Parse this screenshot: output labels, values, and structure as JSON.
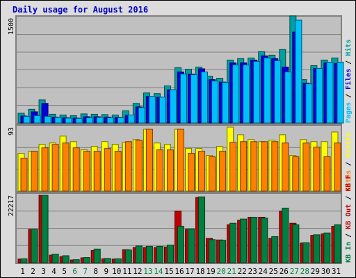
{
  "page": {
    "title": "Daily usage for August 2016",
    "colors": {
      "title": "#0000c0",
      "hits": "#00a0a0",
      "files": "#0000e0",
      "pages": "#00c0ff",
      "visits": "#ffff00",
      "sites": "#ff8000",
      "kb_in": "#008040",
      "kb_out": "#c00000",
      "weekend_label": "#008040",
      "panel": "#c0c0c0",
      "frame": "#dcdcdc"
    }
  },
  "chart_data": [
    {
      "type": "bar",
      "panel": "top",
      "y_max_label": "1500",
      "ylim": [
        0,
        1500
      ],
      "legend": [
        {
          "key": "hits",
          "label": "Hits"
        },
        {
          "key": "files",
          "label": "Files"
        },
        {
          "key": "pages",
          "label": "Pages"
        }
      ],
      "legend_separator": " / ",
      "categories": [
        "1",
        "2",
        "3",
        "4",
        "5",
        "6",
        "7",
        "8",
        "9",
        "10",
        "11",
        "12",
        "13",
        "14",
        "15",
        "16",
        "17",
        "18",
        "19",
        "20",
        "21",
        "22",
        "23",
        "24",
        "25",
        "26",
        "27",
        "28",
        "29",
        "30",
        "31"
      ],
      "weekend_days": [
        "6",
        "7",
        "13",
        "14",
        "20",
        "21",
        "27",
        "28"
      ],
      "series": [
        {
          "name": "Hits",
          "color_key": "hits",
          "values": [
            140,
            195,
            330,
            125,
            115,
            105,
            130,
            125,
            120,
            115,
            175,
            280,
            430,
            420,
            530,
            790,
            770,
            800,
            670,
            640,
            900,
            920,
            930,
            1020,
            970,
            1050,
            1530,
            620,
            820,
            900,
            930
          ]
        },
        {
          "name": "Files",
          "color_key": "files",
          "values": [
            100,
            160,
            280,
            85,
            75,
            70,
            90,
            90,
            85,
            80,
            110,
            230,
            380,
            370,
            475,
            730,
            700,
            775,
            620,
            585,
            860,
            860,
            900,
            960,
            920,
            800,
            1300,
            570,
            780,
            860,
            850
          ]
        },
        {
          "name": "Pages",
          "color_key": "pages",
          "values": [
            95,
            105,
            95,
            80,
            70,
            65,
            75,
            80,
            75,
            75,
            115,
            220,
            380,
            370,
            475,
            700,
            690,
            730,
            600,
            580,
            830,
            830,
            880,
            930,
            890,
            730,
            1470,
            560,
            780,
            870,
            870
          ]
        }
      ]
    },
    {
      "type": "bar",
      "panel": "middle",
      "y_max_label": "93",
      "ylim": [
        0,
        93
      ],
      "legend": [
        {
          "key": "visits",
          "label": "Visits"
        },
        {
          "key": "sites",
          "label": "Sites"
        }
      ],
      "legend_separator": " / ",
      "categories": [
        "1",
        "2",
        "3",
        "4",
        "5",
        "6",
        "7",
        "8",
        "9",
        "10",
        "11",
        "12",
        "13",
        "14",
        "15",
        "16",
        "17",
        "18",
        "19",
        "20",
        "21",
        "22",
        "23",
        "24",
        "25",
        "26",
        "27",
        "28",
        "29",
        "30",
        "31"
      ],
      "series": [
        {
          "name": "Visits",
          "color_key": "visits",
          "values": [
            55,
            58,
            68,
            70,
            80,
            72,
            60,
            65,
            72,
            68,
            71,
            75,
            90,
            70,
            68,
            90,
            62,
            62,
            52,
            65,
            93,
            82,
            75,
            72,
            74,
            82,
            52,
            75,
            72,
            72,
            86
          ]
        },
        {
          "name": "Sites",
          "color_key": "sites",
          "values": [
            48,
            58,
            63,
            68,
            70,
            63,
            58,
            58,
            62,
            58,
            72,
            74,
            90,
            60,
            60,
            90,
            55,
            58,
            50,
            58,
            71,
            72,
            72,
            72,
            72,
            70,
            50,
            70,
            64,
            50,
            70
          ]
        }
      ]
    },
    {
      "type": "bar",
      "panel": "bottom",
      "y_max_label": "22217",
      "ylim": [
        0,
        22217
      ],
      "legend": [
        {
          "key": "kb_out",
          "label": "KB F"
        },
        {
          "key": "kb_out",
          "label": "KB Out"
        },
        {
          "key": "kb_in",
          "label": "KB In"
        }
      ],
      "legend_separator": " / ",
      "categories": [
        "1",
        "2",
        "3",
        "4",
        "5",
        "6",
        "7",
        "8",
        "9",
        "10",
        "11",
        "12",
        "13",
        "14",
        "15",
        "16",
        "17",
        "18",
        "19",
        "20",
        "21",
        "22",
        "23",
        "24",
        "25",
        "26",
        "27",
        "28",
        "29",
        "30",
        "31"
      ],
      "series": [
        {
          "name": "KB Out",
          "color_key": "kb_out",
          "values": [
            1200,
            11000,
            22217,
            2500,
            2000,
            900,
            1600,
            4000,
            1300,
            1200,
            4300,
            5000,
            5000,
            5000,
            5200,
            17000,
            11000,
            21500,
            8000,
            7500,
            12500,
            14000,
            15000,
            15000,
            8000,
            17000,
            13000,
            6500,
            9000,
            9500,
            12000
          ]
        },
        {
          "name": "KB In",
          "color_key": "kb_in",
          "values": [
            1300,
            11000,
            22217,
            2800,
            2300,
            1000,
            1700,
            4500,
            1400,
            1300,
            4200,
            5500,
            5400,
            5400,
            5800,
            12000,
            11100,
            21700,
            7600,
            7400,
            13000,
            14400,
            15000,
            14700,
            8600,
            18000,
            12500,
            6600,
            9200,
            9800,
            12500
          ]
        }
      ]
    }
  ]
}
